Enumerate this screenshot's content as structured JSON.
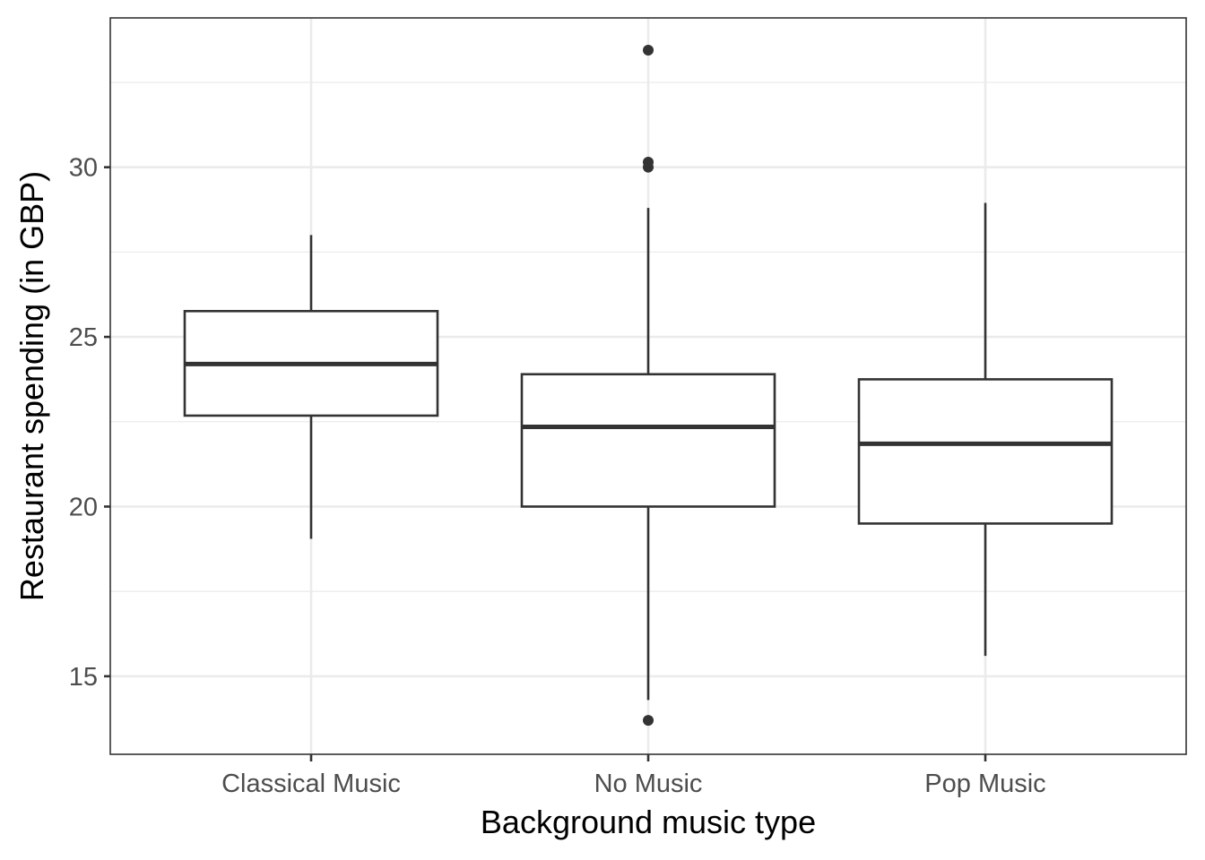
{
  "chart_data": {
    "type": "box",
    "xlabel": "Background music type",
    "ylabel": "Restaurant spending (in GBP)",
    "ylim": [
      12.7,
      34.4
    ],
    "yticks": [
      15,
      20,
      25,
      30
    ],
    "yminor": [
      17.5,
      22.5,
      27.5,
      32.5
    ],
    "grid": true,
    "categories": [
      "Classical Music",
      "No Music",
      "Pop Music"
    ],
    "boxes": [
      {
        "category": "Classical Music",
        "whisker_low": 19.05,
        "q1": 22.68,
        "median": 24.2,
        "q3": 25.76,
        "whisker_high": 28.0,
        "outliers": []
      },
      {
        "category": "No Music",
        "whisker_low": 14.3,
        "q1": 20.0,
        "median": 22.35,
        "q3": 23.9,
        "whisker_high": 28.8,
        "outliers": [
          13.7,
          30.0,
          30.15,
          33.45
        ]
      },
      {
        "category": "Pop Music",
        "whisker_low": 15.6,
        "q1": 19.5,
        "median": 21.85,
        "q3": 23.75,
        "whisker_high": 28.95,
        "outliers": []
      }
    ]
  }
}
